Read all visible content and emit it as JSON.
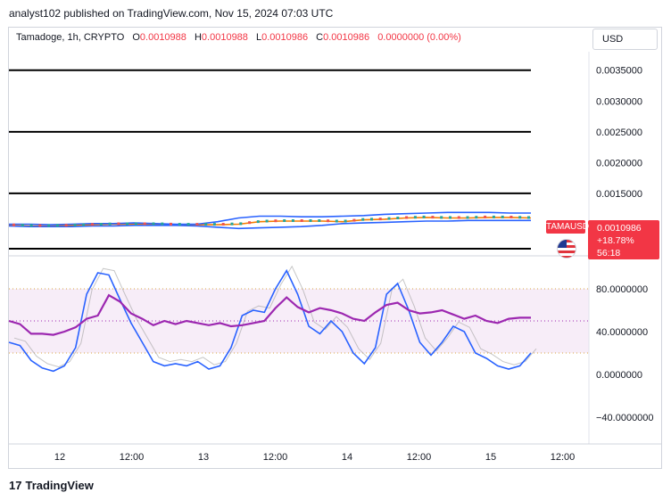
{
  "publisher": "analyst102 published on TradingView.com, Nov 15, 2024 07:03 UTC",
  "header": {
    "symbol": "Tamadoge, 1h, CRYPTO",
    "o_label": "O",
    "o_value": "0.0010988",
    "h_label": "H",
    "h_value": "0.0010988",
    "l_label": "L",
    "l_value": "0.0010986",
    "c_label": "C",
    "c_value": "0.0010986",
    "change": "0.0000000 (0.00%)"
  },
  "currency_button": "USD",
  "price_tag": {
    "symbol": "TAMAUSD",
    "price": "0.0010986",
    "change_pct": "+18.78%",
    "countdown": "56:18"
  },
  "flag_icon": "us-flag-icon",
  "brand": {
    "mark": "17",
    "name": "TradingView"
  },
  "colors": {
    "background": "#ffffff",
    "resistance": "#000000",
    "bollinger": "#2962ff",
    "ma": "#f57c00",
    "stoch_k": "#2962ff",
    "stoch_d": "#a0a0a0",
    "rsi": "#9c27b0",
    "bull": "#26a69a",
    "bear": "#ef5350",
    "tag": "#f23645"
  },
  "chart_data": [
    {
      "type": "line",
      "pane": "price",
      "y_ticks": [
        "0.0035000",
        "0.0030000",
        "0.0025000",
        "0.0020000",
        "0.0015000"
      ],
      "ylim": [
        0.0005,
        0.0038
      ],
      "x_ticks": [
        "12",
        "12:00",
        "13",
        "12:00",
        "14",
        "12:00",
        "15",
        "12:00"
      ],
      "horizontal_levels": [
        0.0035,
        0.003,
        0.0025,
        0.002,
        0.0015
      ],
      "series": [
        {
          "values": [
            0.00098,
            0.00097,
            0.00097,
            0.00098,
            0.00099,
            0.001,
            0.001,
            0.001,
            0.00099,
            0.00099,
            0.00099,
            0.001,
            0.00104,
            0.00105,
            0.00105,
            0.00105,
            0.00104,
            0.00107,
            0.00108,
            0.0011,
            0.00111,
            0.0011,
            0.0011,
            0.00111,
            0.00111,
            0.0011
          ]
        },
        {
          "values": [
            0.001,
            0.001,
            0.00099,
            0.001,
            0.00101,
            0.00101,
            0.00102,
            0.00101,
            0.001,
            0.001,
            0.00104,
            0.0011,
            0.00113,
            0.00113,
            0.00112,
            0.00112,
            0.00113,
            0.00114,
            0.00116,
            0.00117,
            0.00118,
            0.00119,
            0.00119,
            0.00119,
            0.00118,
            0.00118
          ]
        },
        {
          "values": [
            0.00097,
            0.00096,
            0.00096,
            0.00096,
            0.00097,
            0.00097,
            0.00098,
            0.00098,
            0.00098,
            0.00097,
            0.00095,
            0.00093,
            0.00094,
            0.00095,
            0.00096,
            0.00098,
            0.00101,
            0.00102,
            0.00103,
            0.00104,
            0.00105,
            0.00105,
            0.00106,
            0.00106,
            0.00106,
            0.00106
          ]
        }
      ]
    },
    {
      "type": "line",
      "pane": "oscillator",
      "y_ticks": [
        "80.0000000",
        "40.0000000",
        "0.0000000",
        "−40.0000000"
      ],
      "ylim": [
        -65,
        110
      ],
      "bands": {
        "upper": 80,
        "mid": 50,
        "lower": 20
      },
      "series": [
        {
          "values": [
            30,
            27,
            13,
            6,
            3,
            8,
            25,
            75,
            95,
            93,
            70,
            48,
            30,
            12,
            8,
            10,
            8,
            12,
            5,
            8,
            25,
            55,
            60,
            58,
            80,
            97,
            75,
            45,
            38,
            50,
            40,
            20,
            10,
            25,
            75,
            85,
            60,
            30,
            18,
            30,
            45,
            40,
            20,
            15,
            8,
            5,
            8,
            20
          ]
        },
        {
          "values": [
            50,
            47,
            38,
            38,
            37,
            40,
            44,
            52,
            55,
            74,
            68,
            57,
            52,
            46,
            50,
            47,
            50,
            48,
            46,
            48,
            45,
            46,
            48,
            50,
            62,
            72,
            63,
            58,
            62,
            60,
            57,
            52,
            50,
            58,
            65,
            67,
            60,
            57,
            58,
            60,
            56,
            52,
            55,
            50,
            48,
            52,
            53,
            53
          ]
        }
      ]
    }
  ]
}
